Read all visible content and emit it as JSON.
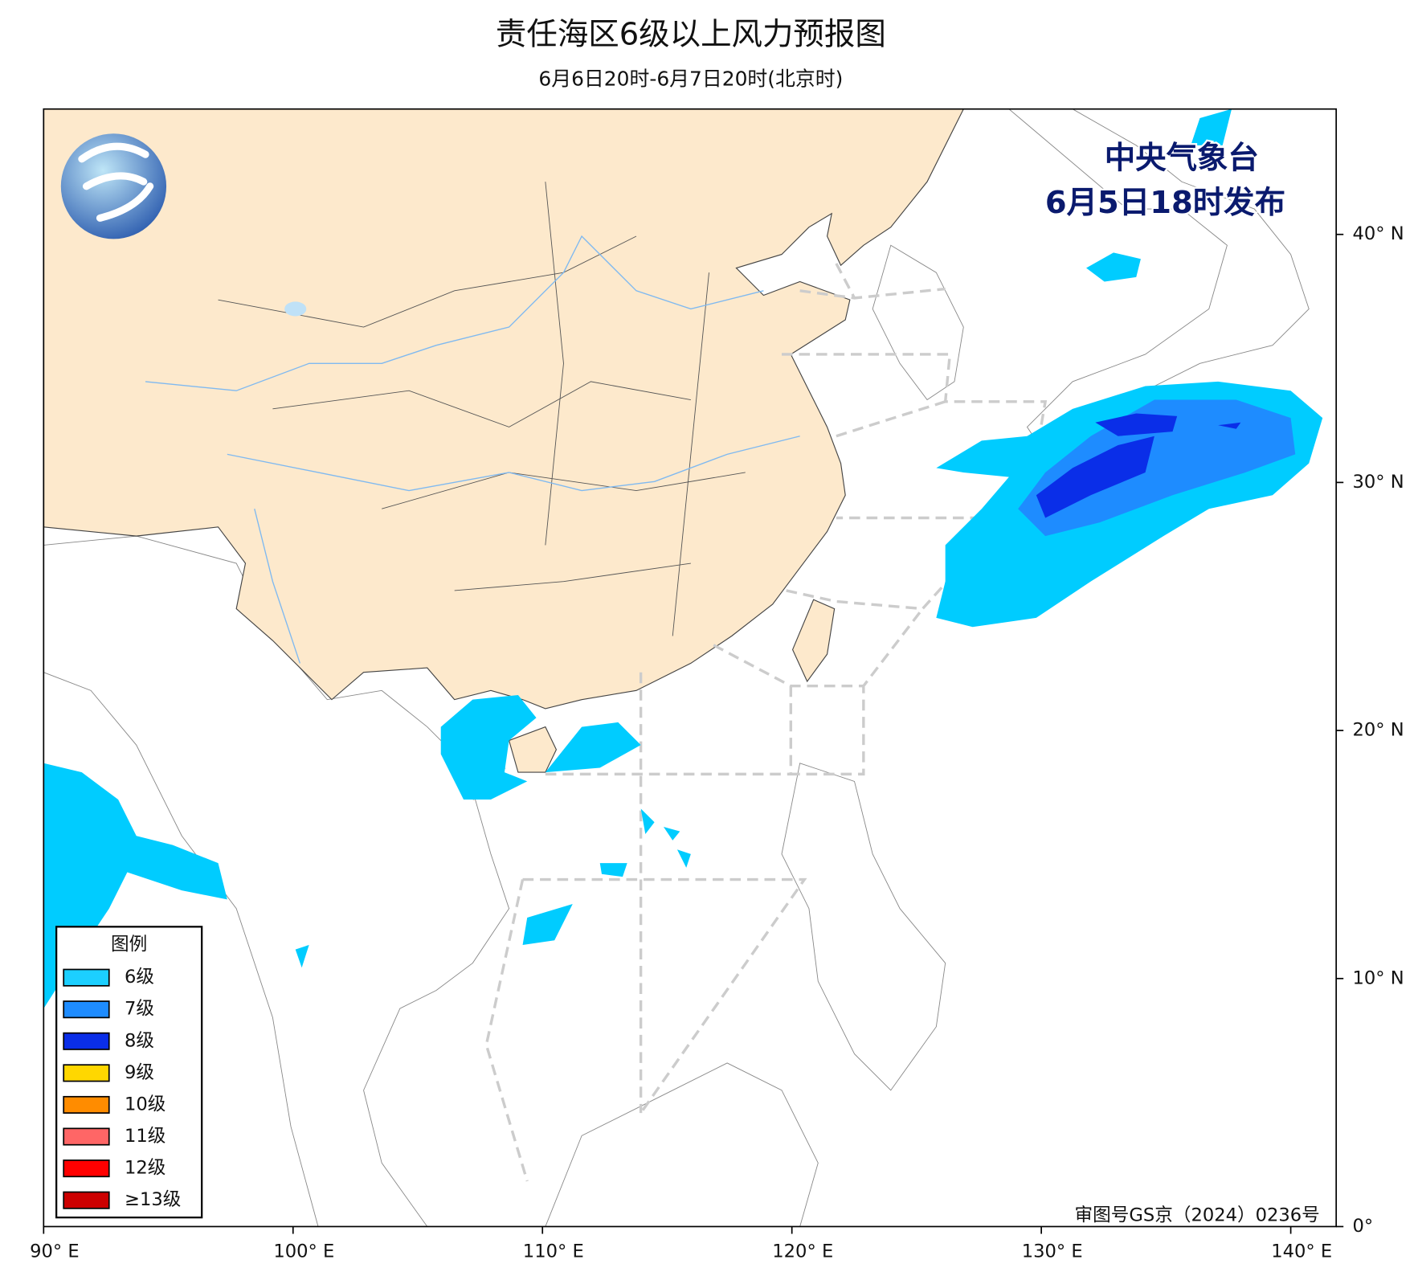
{
  "title": "责任海区6级以上风力预报图",
  "subtitle": "6月6日20时-6月7日20时(北京时)",
  "issuer": "中央气象台",
  "issue_time": "6月5日18时发布",
  "approval": "审图号GS京（2024）0236号",
  "legend": {
    "title": "图例",
    "items": [
      {
        "label": "6级",
        "color": "#1ccfff"
      },
      {
        "label": "7级",
        "color": "#1e8cff"
      },
      {
        "label": "8级",
        "color": "#0a2ee8"
      },
      {
        "label": "9级",
        "color": "#ffd700"
      },
      {
        "label": "10级",
        "color": "#ff8c00"
      },
      {
        "label": "11级",
        "color": "#ff6666"
      },
      {
        "label": "12级",
        "color": "#ff0000"
      },
      {
        "label": "≥13级",
        "color": "#cc0000"
      }
    ]
  },
  "map": {
    "lon_ticks": [
      {
        "value": 90,
        "label": "90° E"
      },
      {
        "value": 100,
        "label": "100° E"
      },
      {
        "value": 110,
        "label": "110° E"
      },
      {
        "value": 120,
        "label": "120° E"
      },
      {
        "value": 130,
        "label": "130° E"
      },
      {
        "value": 140,
        "label": "140° E"
      }
    ],
    "lat_ticks": [
      {
        "value": 0,
        "label": "0°"
      },
      {
        "value": 10,
        "label": "10° N"
      },
      {
        "value": 20,
        "label": "20° N"
      },
      {
        "value": 30,
        "label": "30° N"
      },
      {
        "value": 40,
        "label": "40° N"
      }
    ]
  }
}
